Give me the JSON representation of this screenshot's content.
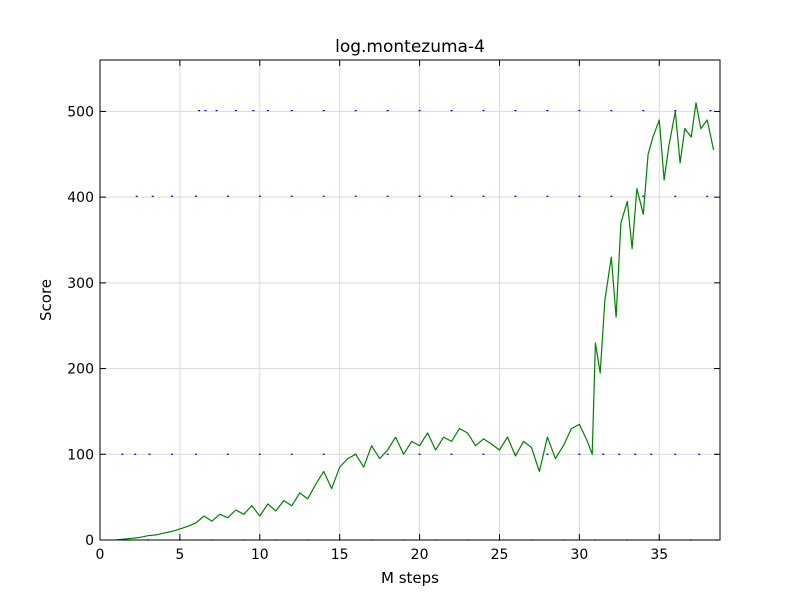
{
  "chart_data": {
    "type": "line",
    "title": "log.montezuma-4",
    "xlabel": "M steps",
    "ylabel": "Score",
    "xlim": [
      0,
      38.8
    ],
    "ylim": [
      0,
      560
    ],
    "xticks": [
      0,
      5,
      10,
      15,
      20,
      25,
      30,
      35
    ],
    "yticks": [
      0,
      100,
      200,
      300,
      400,
      500
    ],
    "grid": true,
    "legend": "none",
    "colors": {
      "scatter": "#0000cc",
      "line": "#008000",
      "grid": "#d9d9d9"
    },
    "series": [
      {
        "type": "scatter",
        "points": [
          [
            1.5,
            0
          ],
          [
            3,
            0
          ],
          [
            5,
            0
          ],
          [
            7,
            0
          ],
          [
            9,
            0
          ],
          [
            11,
            0
          ],
          [
            13,
            0
          ],
          [
            15,
            0
          ],
          [
            17,
            0
          ],
          [
            19,
            0
          ],
          [
            21,
            0
          ],
          [
            23,
            0
          ],
          [
            25,
            0
          ],
          [
            27,
            0
          ],
          [
            29,
            0
          ],
          [
            31,
            0
          ],
          [
            33,
            0
          ],
          [
            35,
            0
          ],
          [
            37,
            0
          ],
          [
            38.6,
            0
          ],
          [
            1.4,
            100
          ],
          [
            2.2,
            100
          ],
          [
            3.1,
            100
          ],
          [
            4.5,
            100
          ],
          [
            6,
            100
          ],
          [
            8,
            100
          ],
          [
            10,
            100
          ],
          [
            12,
            100
          ],
          [
            14,
            100
          ],
          [
            16,
            100
          ],
          [
            18,
            100
          ],
          [
            20,
            100
          ],
          [
            22,
            100
          ],
          [
            24,
            100
          ],
          [
            26,
            100
          ],
          [
            28,
            100
          ],
          [
            30,
            100
          ],
          [
            31.5,
            100
          ],
          [
            32.5,
            100
          ],
          [
            33.5,
            100
          ],
          [
            34.5,
            100
          ],
          [
            36,
            100
          ],
          [
            37.5,
            100
          ],
          [
            38.6,
            100
          ],
          [
            2.3,
            401
          ],
          [
            3.3,
            401
          ],
          [
            4.5,
            401
          ],
          [
            6,
            401
          ],
          [
            8,
            401
          ],
          [
            10,
            401
          ],
          [
            12,
            401
          ],
          [
            14,
            401
          ],
          [
            16,
            401
          ],
          [
            18,
            401
          ],
          [
            20,
            401
          ],
          [
            22,
            401
          ],
          [
            24,
            401
          ],
          [
            26,
            401
          ],
          [
            28,
            401
          ],
          [
            30,
            401
          ],
          [
            32,
            401
          ],
          [
            34,
            401
          ],
          [
            36,
            401
          ],
          [
            38,
            401
          ],
          [
            6.2,
            501
          ],
          [
            6.6,
            501
          ],
          [
            7.3,
            501
          ],
          [
            8.5,
            501
          ],
          [
            9.6,
            501
          ],
          [
            10.5,
            501
          ],
          [
            12,
            501
          ],
          [
            14,
            501
          ],
          [
            16,
            501
          ],
          [
            18,
            501
          ],
          [
            20,
            501
          ],
          [
            22,
            501
          ],
          [
            24,
            501
          ],
          [
            26,
            501
          ],
          [
            28,
            501
          ],
          [
            30,
            501
          ],
          [
            32,
            501
          ],
          [
            34,
            501
          ],
          [
            36,
            501
          ],
          [
            38.2,
            501
          ]
        ]
      },
      {
        "type": "line",
        "x": [
          1.0,
          1.5,
          2.0,
          2.5,
          3.0,
          3.5,
          4.0,
          4.5,
          5.0,
          5.5,
          6.0,
          6.5,
          7.0,
          7.5,
          8.0,
          8.5,
          9.0,
          9.5,
          10.0,
          10.5,
          11.0,
          11.5,
          12.0,
          12.5,
          13.0,
          13.5,
          14.0,
          14.5,
          15.0,
          15.5,
          16.0,
          16.5,
          17.0,
          17.5,
          18.0,
          18.5,
          19.0,
          19.5,
          20.0,
          20.5,
          21.0,
          21.5,
          22.0,
          22.5,
          23.0,
          23.5,
          24.0,
          24.5,
          25.0,
          25.5,
          26.0,
          26.5,
          27.0,
          27.5,
          28.0,
          28.5,
          29.0,
          29.5,
          30.0,
          30.5,
          30.8,
          31.0,
          31.3,
          31.6,
          32.0,
          32.3,
          32.6,
          33.0,
          33.3,
          33.6,
          34.0,
          34.3,
          34.6,
          35.0,
          35.3,
          35.6,
          36.0,
          36.3,
          36.6,
          37.0,
          37.3,
          37.6,
          38.0,
          38.4
        ],
        "y": [
          0,
          1,
          2,
          3,
          5,
          6,
          8,
          10,
          13,
          16,
          20,
          28,
          22,
          30,
          26,
          35,
          30,
          40,
          28,
          42,
          34,
          46,
          40,
          55,
          48,
          65,
          80,
          60,
          85,
          95,
          100,
          85,
          110,
          95,
          105,
          120,
          100,
          115,
          110,
          125,
          105,
          120,
          115,
          130,
          125,
          110,
          118,
          112,
          105,
          120,
          98,
          115,
          108,
          80,
          120,
          95,
          110,
          130,
          135,
          115,
          100,
          230,
          195,
          280,
          330,
          260,
          370,
          395,
          340,
          410,
          380,
          450,
          470,
          490,
          420,
          460,
          500,
          440,
          480,
          470,
          510,
          480,
          490,
          455
        ]
      }
    ]
  }
}
